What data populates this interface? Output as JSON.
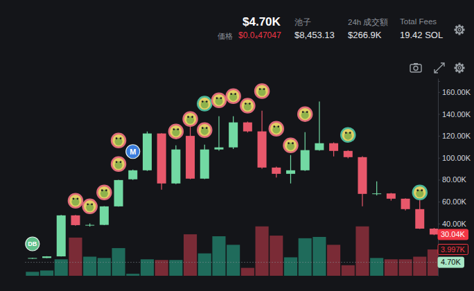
{
  "header": {
    "market_cap": "$4.70K",
    "price_label": "価格",
    "price": "$0.0₄47047",
    "stats": [
      {
        "label": "池子",
        "value": "$8,453.13"
      },
      {
        "label": "24h 成交額",
        "value": "$266.9K"
      },
      {
        "label": "Total Fees",
        "value": "19.42 SOL"
      }
    ]
  },
  "chart_data": {
    "type": "candlestick",
    "categories": [
      null,
      null,
      null,
      null,
      null,
      null,
      null,
      null,
      null,
      null,
      null,
      null,
      null,
      null,
      null,
      null,
      null,
      null,
      null,
      null,
      null,
      null,
      null,
      null,
      null,
      null,
      null,
      null,
      null
    ],
    "open": [
      8000,
      8600,
      10100,
      47500,
      38600,
      38800,
      55700,
      80400,
      88600,
      122200,
      76600,
      120000,
      81000,
      107600,
      109500,
      132300,
      124100,
      91100,
      85400,
      88600,
      107000,
      113300,
      106300,
      100600,
      67100,
      67500,
      62700,
      53200,
      35400
    ],
    "high": [
      8800,
      10300,
      47800,
      47800,
      40200,
      56000,
      80000,
      89200,
      124000,
      122500,
      111400,
      130000,
      112000,
      138000,
      138000,
      133000,
      143000,
      92000,
      102500,
      123400,
      151300,
      114000,
      107000,
      101500,
      78500,
      68000,
      63000,
      62700,
      36000
    ],
    "low": [
      7900,
      8500,
      10000,
      38000,
      37300,
      38500,
      55500,
      79800,
      88000,
      70900,
      76000,
      80500,
      80500,
      106500,
      108000,
      123000,
      90000,
      82000,
      76600,
      88000,
      106500,
      101300,
      99500,
      55700,
      65800,
      61000,
      52000,
      35000,
      29500
    ],
    "close": [
      8600,
      10100,
      47500,
      38600,
      38800,
      55700,
      79700,
      88600,
      122200,
      76600,
      107600,
      81000,
      107600,
      109500,
      132300,
      124100,
      91100,
      85400,
      88600,
      107000,
      113300,
      106300,
      100600,
      67100,
      67500,
      62700,
      53200,
      35400,
      30040
    ],
    "volume": [
      600,
      800,
      2500,
      5800,
      2900,
      2700,
      4200,
      300,
      2500,
      2400,
      2400,
      6300,
      3400,
      6000,
      4700,
      1200,
      7500,
      6100,
      2800,
      5700,
      5900,
      4700,
      1600,
      7500,
      2700,
      2500,
      2500,
      2900,
      3997
    ],
    "ylim": [
      0,
      170000
    ],
    "yticks": [
      {
        "value": 40000,
        "label": "40.00K"
      },
      {
        "value": 60000,
        "label": "60.00K"
      },
      {
        "value": 80000,
        "label": "80.00K"
      },
      {
        "value": 100000,
        "label": "100.00K"
      },
      {
        "value": 120000,
        "label": "120.00K"
      },
      {
        "value": 140000,
        "label": "140.00K"
      },
      {
        "value": 160000,
        "label": "160.00K"
      }
    ],
    "y2lim": [
      0,
      30000
    ],
    "grid": false,
    "price_tags": [
      {
        "value": 30040,
        "label": "30.04K",
        "color": "#f23645"
      },
      {
        "value": 4700,
        "label": "4.70K",
        "color": "#a8e6c5"
      }
    ],
    "volume_tag": {
      "value": 3997,
      "label": "3.997K",
      "color": "#f23645"
    },
    "annotations": [
      {
        "text": "DB",
        "x": 0,
        "y": 21500,
        "color": "#5fbf8a"
      },
      {
        "text": "M",
        "x": 7,
        "y": 105700,
        "color": "#3b7ddd"
      }
    ],
    "trade_markers": [
      {
        "x": 6,
        "y": 115800,
        "color": "#e06b7a"
      },
      {
        "x": 6,
        "y": 94300,
        "color": "#e06b7a"
      },
      {
        "x": 3,
        "y": 60800,
        "color": "#e06b7a"
      },
      {
        "x": 4,
        "y": 55700,
        "color": "#e06b7a"
      },
      {
        "x": 5,
        "y": 68400,
        "color": "#e06b7a"
      },
      {
        "x": 10,
        "y": 124100,
        "color": "#e06b7a"
      },
      {
        "x": 11,
        "y": 135400,
        "color": "#e06b7a"
      },
      {
        "x": 12,
        "y": 149400,
        "color": "#4bb89a"
      },
      {
        "x": 12,
        "y": 125300,
        "color": "#e06b7a"
      },
      {
        "x": 13,
        "y": 152500,
        "color": "#e06b7a"
      },
      {
        "x": 14,
        "y": 156300,
        "color": "#e06b7a"
      },
      {
        "x": 15,
        "y": 147500,
        "color": "#e06b7a"
      },
      {
        "x": 16,
        "y": 160800,
        "color": "#e06b7a"
      },
      {
        "x": 17,
        "y": 126600,
        "color": "#e06b7a"
      },
      {
        "x": 18,
        "y": 111400,
        "color": "#e06b7a"
      },
      {
        "x": 19,
        "y": 139900,
        "color": "#e06b7a"
      },
      {
        "x": 22,
        "y": 120900,
        "color": "#4bb89a"
      },
      {
        "x": 27,
        "y": 68400,
        "color": "#4bb89a"
      }
    ]
  }
}
